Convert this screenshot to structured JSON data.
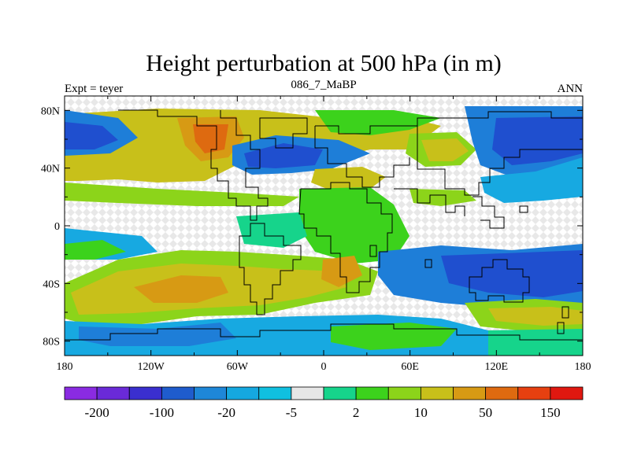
{
  "chart_data": {
    "type": "heatmap",
    "title": "Height perturbation at 500 hPa (in m)",
    "left_label": "Expt = teyer",
    "center_label": "086_7_MaBP",
    "right_label": "ANN",
    "x_ticks": [
      "180",
      "120W",
      "60W",
      "0",
      "60E",
      "120E",
      "180"
    ],
    "x_tick_lons": [
      -180,
      -120,
      -60,
      0,
      60,
      120,
      180
    ],
    "y_ticks": [
      "80N",
      "40N",
      "0",
      "40S",
      "80S"
    ],
    "y_tick_lats": [
      80,
      40,
      0,
      -40,
      -80
    ],
    "xlim": [
      -180,
      180
    ],
    "ylim": [
      -90,
      90
    ],
    "colorbar": {
      "labels": [
        "-200",
        "-100",
        "-20",
        "-5",
        "2",
        "10",
        "50",
        "150"
      ],
      "colors": [
        "#8a2be2",
        "#6a2ad8",
        "#3a2fcf",
        "#1f5ccd",
        "#1e87d8",
        "#15a8e0",
        "#10c0e0",
        "#e6e6e6",
        "#16d48b",
        "#3cd21c",
        "#8cd41a",
        "#c8c01a",
        "#d79a14",
        "#de6a10",
        "#e64010",
        "#e01810"
      ]
    },
    "colors": {
      "deep_blue": "#1f4fcf",
      "blue": "#1e7ed8",
      "light_blue": "#17a9e1",
      "neutral": "#e6e6e6",
      "teal": "#16d48b",
      "green": "#3cd21c",
      "yellow_green": "#8cd41a",
      "olive": "#c8c01a",
      "orange": "#d79a14",
      "dark_orange": "#de6a10"
    }
  }
}
